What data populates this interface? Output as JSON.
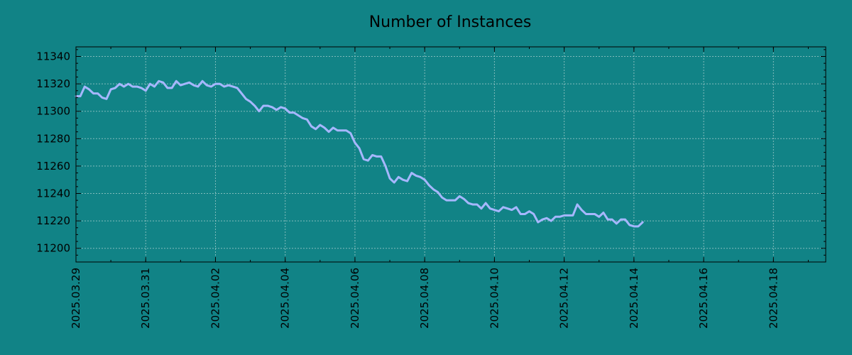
{
  "colors": {
    "background": "#118386",
    "line": "#a6b7ff",
    "grid": "#9fc9c9",
    "axis": "#000000"
  },
  "chart_data": {
    "type": "line",
    "title": "Number of Instances",
    "xlabel": "",
    "ylabel": "",
    "grid": true,
    "legend": "none",
    "xlim": [
      "2025-03-29",
      "2025-04-19 12:00"
    ],
    "ylim": [
      11190,
      11347
    ],
    "x_ticks": [
      "2025.03.29",
      "2025.03.31",
      "2025.04.02",
      "2025.04.04",
      "2025.04.06",
      "2025.04.08",
      "2025.04.10",
      "2025.04.12",
      "2025.04.14",
      "2025.04.16",
      "2025.04.18"
    ],
    "y_ticks": [
      11200,
      11220,
      11240,
      11260,
      11280,
      11300,
      11320,
      11340
    ],
    "series": [
      {
        "points": [
          [
            "2025-03-29 00:00",
            11311
          ],
          [
            "2025-03-29 03:00",
            11311
          ],
          [
            "2025-03-29 06:00",
            11318
          ],
          [
            "2025-03-29 09:00",
            11316
          ],
          [
            "2025-03-29 12:00",
            11313
          ],
          [
            "2025-03-29 15:00",
            11313
          ],
          [
            "2025-03-29 18:00",
            11310
          ],
          [
            "2025-03-29 21:00",
            11309
          ],
          [
            "2025-03-30 00:00",
            11316
          ],
          [
            "2025-03-30 03:00",
            11317
          ],
          [
            "2025-03-30 06:00",
            11320
          ],
          [
            "2025-03-30 09:00",
            11318
          ],
          [
            "2025-03-30 12:00",
            11320
          ],
          [
            "2025-03-30 15:00",
            11318
          ],
          [
            "2025-03-30 18:00",
            11318
          ],
          [
            "2025-03-30 21:00",
            11317
          ],
          [
            "2025-03-31 00:00",
            11315
          ],
          [
            "2025-03-31 03:00",
            11320
          ],
          [
            "2025-03-31 06:00",
            11318
          ],
          [
            "2025-03-31 09:00",
            11322
          ],
          [
            "2025-03-31 12:00",
            11321
          ],
          [
            "2025-03-31 15:00",
            11317
          ],
          [
            "2025-03-31 18:00",
            11317
          ],
          [
            "2025-03-31 21:00",
            11322
          ],
          [
            "2025-04-01 00:00",
            11319
          ],
          [
            "2025-04-01 03:00",
            11320
          ],
          [
            "2025-04-01 06:00",
            11321
          ],
          [
            "2025-04-01 09:00",
            11319
          ],
          [
            "2025-04-01 12:00",
            11318
          ],
          [
            "2025-04-01 15:00",
            11322
          ],
          [
            "2025-04-01 18:00",
            11319
          ],
          [
            "2025-04-01 21:00",
            11318
          ],
          [
            "2025-04-02 00:00",
            11320
          ],
          [
            "2025-04-02 03:00",
            11320
          ],
          [
            "2025-04-02 06:00",
            11318
          ],
          [
            "2025-04-02 09:00",
            11319
          ],
          [
            "2025-04-02 12:00",
            11318
          ],
          [
            "2025-04-02 15:00",
            11317
          ],
          [
            "2025-04-02 18:00",
            11313
          ],
          [
            "2025-04-02 21:00",
            11309
          ],
          [
            "2025-04-03 00:00",
            11307
          ],
          [
            "2025-04-03 03:00",
            11304
          ],
          [
            "2025-04-03 06:00",
            11300
          ],
          [
            "2025-04-03 09:00",
            11304
          ],
          [
            "2025-04-03 12:00",
            11304
          ],
          [
            "2025-04-03 15:00",
            11303
          ],
          [
            "2025-04-03 18:00",
            11301
          ],
          [
            "2025-04-03 21:00",
            11303
          ],
          [
            "2025-04-04 00:00",
            11302
          ],
          [
            "2025-04-04 03:00",
            11299
          ],
          [
            "2025-04-04 06:00",
            11299
          ],
          [
            "2025-04-04 09:00",
            11297
          ],
          [
            "2025-04-04 12:00",
            11295
          ],
          [
            "2025-04-04 15:00",
            11294
          ],
          [
            "2025-04-04 18:00",
            11289
          ],
          [
            "2025-04-04 21:00",
            11287
          ],
          [
            "2025-04-05 00:00",
            11290
          ],
          [
            "2025-04-05 03:00",
            11288
          ],
          [
            "2025-04-05 06:00",
            11285
          ],
          [
            "2025-04-05 09:00",
            11288
          ],
          [
            "2025-04-05 12:00",
            11286
          ],
          [
            "2025-04-05 15:00",
            11286
          ],
          [
            "2025-04-05 18:00",
            11286
          ],
          [
            "2025-04-05 21:00",
            11284
          ],
          [
            "2025-04-06 00:00",
            11277
          ],
          [
            "2025-04-06 03:00",
            11273
          ],
          [
            "2025-04-06 06:00",
            11265
          ],
          [
            "2025-04-06 09:00",
            11264
          ],
          [
            "2025-04-06 12:00",
            11268
          ],
          [
            "2025-04-06 15:00",
            11267
          ],
          [
            "2025-04-06 18:00",
            11267
          ],
          [
            "2025-04-06 21:00",
            11260
          ],
          [
            "2025-04-07 00:00",
            11251
          ],
          [
            "2025-04-07 03:00",
            11248
          ],
          [
            "2025-04-07 06:00",
            11252
          ],
          [
            "2025-04-07 09:00",
            11250
          ],
          [
            "2025-04-07 12:00",
            11249
          ],
          [
            "2025-04-07 15:00",
            11255
          ],
          [
            "2025-04-07 18:00",
            11253
          ],
          [
            "2025-04-07 21:00",
            11252
          ],
          [
            "2025-04-08 00:00",
            11250
          ],
          [
            "2025-04-08 03:00",
            11246
          ],
          [
            "2025-04-08 06:00",
            11243
          ],
          [
            "2025-04-08 09:00",
            11241
          ],
          [
            "2025-04-08 12:00",
            11237
          ],
          [
            "2025-04-08 15:00",
            11235
          ],
          [
            "2025-04-08 18:00",
            11235
          ],
          [
            "2025-04-08 21:00",
            11235
          ],
          [
            "2025-04-09 00:00",
            11238
          ],
          [
            "2025-04-09 03:00",
            11236
          ],
          [
            "2025-04-09 06:00",
            11233
          ],
          [
            "2025-04-09 09:00",
            11232
          ],
          [
            "2025-04-09 12:00",
            11232
          ],
          [
            "2025-04-09 15:00",
            11229
          ],
          [
            "2025-04-09 18:00",
            11233
          ],
          [
            "2025-04-09 21:00",
            11229
          ],
          [
            "2025-04-10 00:00",
            11228
          ],
          [
            "2025-04-10 03:00",
            11227
          ],
          [
            "2025-04-10 06:00",
            11230
          ],
          [
            "2025-04-10 09:00",
            11229
          ],
          [
            "2025-04-10 12:00",
            11228
          ],
          [
            "2025-04-10 15:00",
            11230
          ],
          [
            "2025-04-10 18:00",
            11225
          ],
          [
            "2025-04-10 21:00",
            11225
          ],
          [
            "2025-04-11 00:00",
            11227
          ],
          [
            "2025-04-11 03:00",
            11225
          ],
          [
            "2025-04-11 06:00",
            11219
          ],
          [
            "2025-04-11 09:00",
            11221
          ],
          [
            "2025-04-11 12:00",
            11222
          ],
          [
            "2025-04-11 15:00",
            11220
          ],
          [
            "2025-04-11 18:00",
            11223
          ],
          [
            "2025-04-11 21:00",
            11223
          ],
          [
            "2025-04-12 00:00",
            11224
          ],
          [
            "2025-04-12 03:00",
            11224
          ],
          [
            "2025-04-12 06:00",
            11224
          ],
          [
            "2025-04-12 09:00",
            11232
          ],
          [
            "2025-04-12 12:00",
            11228
          ],
          [
            "2025-04-12 15:00",
            11225
          ],
          [
            "2025-04-12 18:00",
            11225
          ],
          [
            "2025-04-12 21:00",
            11225
          ],
          [
            "2025-04-13 00:00",
            11223
          ],
          [
            "2025-04-13 03:00",
            11226
          ],
          [
            "2025-04-13 06:00",
            11221
          ],
          [
            "2025-04-13 09:00",
            11221
          ],
          [
            "2025-04-13 12:00",
            11218
          ],
          [
            "2025-04-13 15:00",
            11221
          ],
          [
            "2025-04-13 18:00",
            11221
          ],
          [
            "2025-04-13 21:00",
            11217
          ],
          [
            "2025-04-14 00:00",
            11216
          ],
          [
            "2025-04-14 03:00",
            11216
          ],
          [
            "2025-04-14 06:00",
            11219
          ]
        ]
      }
    ]
  }
}
